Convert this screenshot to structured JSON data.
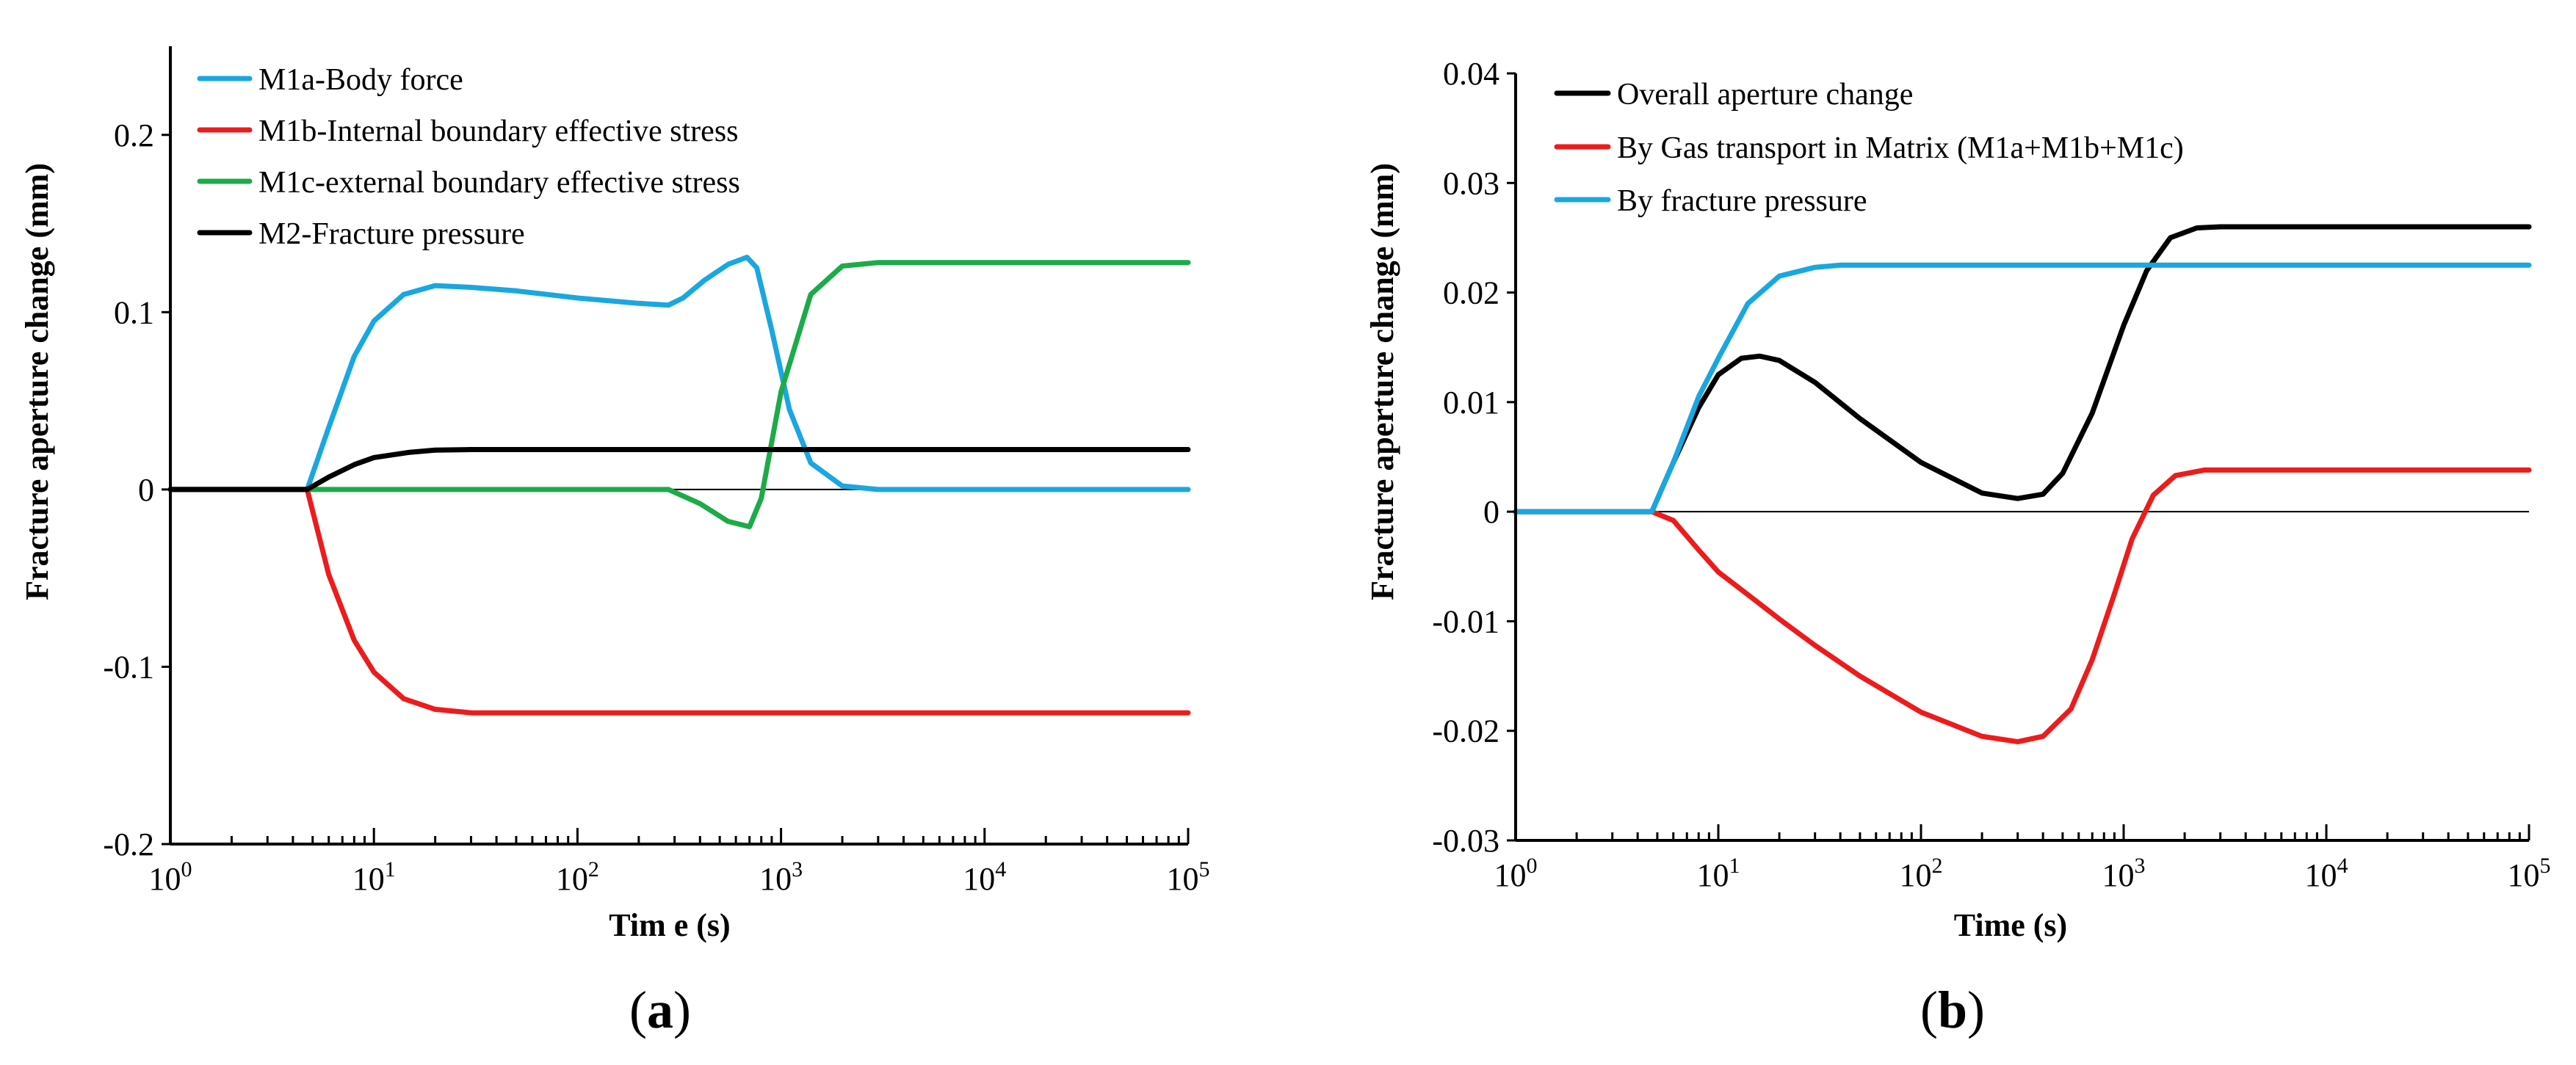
{
  "chart_data": [
    {
      "type": "line",
      "panel_label": "(a)",
      "panel_letter": "a",
      "xlabel": "Tim e (s)",
      "ylabel": "Fracture aperture change (mm)",
      "x_scale": "log",
      "xlim": [
        1,
        100000
      ],
      "ylim": [
        -0.2,
        0.25
      ],
      "x_tick_labels": [
        {
          "base": "10",
          "exp": "0"
        },
        {
          "base": "10",
          "exp": "1"
        },
        {
          "base": "10",
          "exp": "2"
        },
        {
          "base": "10",
          "exp": "3"
        },
        {
          "base": "10",
          "exp": "4"
        },
        {
          "base": "10",
          "exp": "5"
        }
      ],
      "y_ticks": [
        -0.2,
        -0.1,
        0,
        0.1,
        0.2
      ],
      "y_tick_labels": [
        "-0.2",
        "-0.1",
        "0",
        "0.1",
        "0.2"
      ],
      "legend_position": "top-left",
      "series": [
        {
          "name": "M1a-Body force",
          "color": "#1aa7e0",
          "x": [
            1,
            4.7,
            6,
            8,
            10,
            14,
            20,
            30,
            50,
            100,
            200,
            280,
            330,
            420,
            550,
            680,
            760,
            900,
            1100,
            1400,
            2000,
            3000,
            100000
          ],
          "y": [
            0,
            0,
            0.035,
            0.075,
            0.095,
            0.11,
            0.115,
            0.114,
            0.112,
            0.108,
            0.105,
            0.104,
            0.108,
            0.118,
            0.127,
            0.131,
            0.125,
            0.09,
            0.045,
            0.015,
            0.002,
            0,
            0
          ]
        },
        {
          "name": "M1b-Internal boundary effective stress",
          "color": "#ec1c1c",
          "x": [
            1,
            4.7,
            6,
            8,
            10,
            14,
            20,
            30,
            50,
            100000
          ],
          "y": [
            0,
            0,
            -0.048,
            -0.085,
            -0.103,
            -0.118,
            -0.124,
            -0.126,
            -0.126,
            -0.126
          ]
        },
        {
          "name": "M1c-external boundary effective stress",
          "color": "#1cab48",
          "x": [
            1,
            280,
            400,
            550,
            700,
            800,
            1000,
            1400,
            2000,
            3000,
            100000
          ],
          "y": [
            0,
            0,
            -0.008,
            -0.018,
            -0.021,
            -0.005,
            0.055,
            0.11,
            0.126,
            0.128,
            0.128
          ]
        },
        {
          "name": "M2-Fracture pressure",
          "color": "#000000",
          "x": [
            1,
            4.7,
            6,
            8,
            10,
            15,
            20,
            30,
            100000
          ],
          "y": [
            0,
            0,
            0.007,
            0.014,
            0.018,
            0.021,
            0.0222,
            0.0225,
            0.0225
          ]
        }
      ]
    },
    {
      "type": "line",
      "panel_label": "(b)",
      "panel_letter": "b",
      "xlabel": "Time (s)",
      "ylabel": "Fracture aperture change (mm)",
      "x_scale": "log",
      "xlim": [
        1,
        100000
      ],
      "ylim": [
        -0.03,
        0.04
      ],
      "x_tick_labels": [
        {
          "base": "10",
          "exp": "0"
        },
        {
          "base": "10",
          "exp": "1"
        },
        {
          "base": "10",
          "exp": "2"
        },
        {
          "base": "10",
          "exp": "3"
        },
        {
          "base": "10",
          "exp": "4"
        },
        {
          "base": "10",
          "exp": "5"
        }
      ],
      "y_ticks": [
        -0.03,
        -0.02,
        -0.01,
        0,
        0.01,
        0.02,
        0.03,
        0.04
      ],
      "y_tick_labels": [
        "-0.03",
        "-0.02",
        "-0.01",
        "0",
        "0.01",
        "0.02",
        "0.03",
        "0.04"
      ],
      "legend_position": "top-left",
      "series": [
        {
          "name": "Overall aperture change",
          "color": "#000000",
          "x": [
            1,
            4.7,
            6,
            8,
            10,
            13,
            16,
            20,
            30,
            50,
            100,
            200,
            300,
            400,
            500,
            700,
            1000,
            1300,
            1700,
            2300,
            3000,
            100000
          ],
          "y": [
            0,
            0,
            0.0045,
            0.0095,
            0.0125,
            0.014,
            0.0142,
            0.0138,
            0.0118,
            0.0085,
            0.0045,
            0.0017,
            0.0012,
            0.0016,
            0.0035,
            0.009,
            0.017,
            0.022,
            0.025,
            0.0259,
            0.026,
            0.026
          ]
        },
        {
          "name": "By Gas transport in Matrix (M1a+M1b+M1c)",
          "color": "#ec1c1c",
          "x": [
            1,
            4.7,
            6,
            8,
            10,
            15,
            20,
            30,
            50,
            100,
            200,
            300,
            400,
            550,
            700,
            900,
            1100,
            1400,
            1800,
            2500,
            100000
          ],
          "y": [
            0,
            0,
            -0.0008,
            -0.0035,
            -0.0055,
            -0.008,
            -0.0098,
            -0.0122,
            -0.015,
            -0.0183,
            -0.0205,
            -0.021,
            -0.0205,
            -0.018,
            -0.0135,
            -0.0075,
            -0.0025,
            0.0015,
            0.0033,
            0.0038,
            0.0038
          ]
        },
        {
          "name": "By fracture pressure",
          "color": "#1aa7e0",
          "x": [
            1,
            4.7,
            6,
            8,
            10,
            14,
            20,
            30,
            40,
            100000
          ],
          "y": [
            0,
            0,
            0.0045,
            0.0105,
            0.014,
            0.019,
            0.0215,
            0.0223,
            0.0225,
            0.0225
          ]
        }
      ]
    }
  ]
}
